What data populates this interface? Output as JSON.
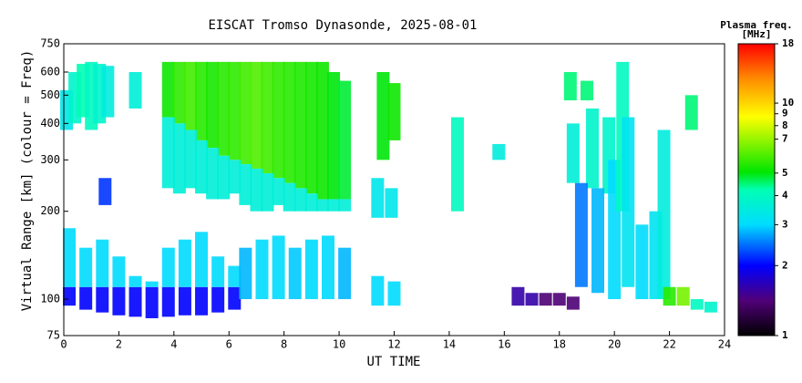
{
  "chart_data": {
    "type": "range-scatter",
    "title": "EISCAT Tromso Dynasonde, 2025-08-01",
    "xlabel": "UT TIME",
    "ylabel": "Virtual Range [km] (colour = Freq)",
    "colorbar_title": "Plasma freq.",
    "colorbar_unit": "[MHz]",
    "xlim": [
      0,
      24
    ],
    "xticks": [
      0,
      2,
      4,
      6,
      8,
      10,
      12,
      14,
      16,
      18,
      20,
      22,
      24
    ],
    "ylim": [
      75,
      750
    ],
    "yticks": [
      75,
      100,
      200,
      300,
      400,
      500,
      600,
      750
    ],
    "ylog": true,
    "clim": [
      1,
      18
    ],
    "cticks": [
      1,
      2,
      3,
      4,
      5,
      7,
      8,
      9,
      10,
      18
    ],
    "clog": true,
    "x": [
      0.1,
      0.4,
      0.7,
      1.0,
      1.3,
      1.6,
      1.5,
      2.6,
      3.8,
      4.2,
      4.6,
      5.0,
      5.4,
      5.8,
      6.2,
      6.6,
      7.0,
      7.4,
      7.8,
      8.2,
      8.6,
      9.0,
      9.4,
      9.8,
      10.2,
      3.8,
      4.2,
      4.6,
      5.0,
      5.4,
      5.8,
      6.2,
      6.6,
      7.0,
      7.4,
      7.8,
      8.2,
      8.6,
      9.0,
      9.4,
      9.8,
      10.2,
      0.2,
      0.8,
      1.4,
      2.0,
      2.6,
      3.2,
      3.8,
      4.4,
      5.0,
      5.6,
      6.2,
      0.2,
      0.8,
      1.4,
      2.0,
      2.6,
      3.2,
      3.8,
      4.4,
      5.0,
      5.6,
      6.2,
      6.6,
      7.2,
      7.8,
      8.4,
      9.0,
      9.6,
      10.2,
      11.6,
      12.0,
      11.4,
      11.9,
      11.4,
      12.0,
      14.3,
      15.8,
      16.5,
      17.0,
      17.5,
      18.0,
      18.5,
      18.4,
      19.0,
      18.5,
      19.2,
      19.8,
      18.8,
      19.4,
      20.0,
      20.3,
      20.5,
      21.0,
      21.5,
      21.8,
      22.0,
      22.5,
      23.0,
      23.5,
      22.8
    ],
    "ymin": [
      380,
      400,
      420,
      380,
      400,
      420,
      210,
      450,
      420,
      400,
      380,
      350,
      330,
      310,
      300,
      290,
      280,
      270,
      260,
      250,
      240,
      230,
      220,
      220,
      220,
      240,
      230,
      240,
      230,
      220,
      220,
      230,
      210,
      200,
      200,
      210,
      200,
      200,
      200,
      200,
      200,
      200,
      95,
      92,
      90,
      88,
      87,
      86,
      87,
      88,
      88,
      90,
      92,
      110,
      110,
      110,
      110,
      110,
      110,
      110,
      110,
      110,
      110,
      110,
      100,
      100,
      100,
      100,
      100,
      100,
      100,
      300,
      350,
      190,
      190,
      95,
      95,
      200,
      300,
      95,
      95,
      95,
      95,
      92,
      480,
      480,
      250,
      240,
      230,
      110,
      105,
      100,
      200,
      110,
      100,
      100,
      100,
      95,
      95,
      92,
      90,
      380
    ],
    "ymax": [
      520,
      600,
      640,
      650,
      640,
      630,
      260,
      600,
      650,
      650,
      650,
      650,
      650,
      650,
      650,
      650,
      650,
      650,
      650,
      650,
      650,
      650,
      650,
      600,
      560,
      420,
      400,
      380,
      350,
      330,
      310,
      300,
      290,
      280,
      270,
      260,
      250,
      240,
      230,
      220,
      220,
      220,
      110,
      110,
      110,
      110,
      110,
      110,
      110,
      110,
      110,
      110,
      110,
      175,
      150,
      160,
      140,
      120,
      115,
      150,
      160,
      170,
      140,
      130,
      150,
      160,
      165,
      150,
      160,
      165,
      150,
      600,
      550,
      260,
      240,
      120,
      115,
      420,
      340,
      110,
      105,
      105,
      105,
      102,
      600,
      560,
      400,
      450,
      420,
      250,
      240,
      300,
      650,
      420,
      180,
      200,
      380,
      110,
      110,
      100,
      98,
      500
    ],
    "freq": [
      3.3,
      3.8,
      4.2,
      4.0,
      3.8,
      3.5,
      2.2,
      3.6,
      5.2,
      5.6,
      5.8,
      5.5,
      5.3,
      5.5,
      5.6,
      5.8,
      6.0,
      5.8,
      5.6,
      5.5,
      5.4,
      5.3,
      5.2,
      5.0,
      4.8,
      3.6,
      3.6,
      3.6,
      3.6,
      3.6,
      3.6,
      3.6,
      3.6,
      3.6,
      3.6,
      3.6,
      3.6,
      3.6,
      3.6,
      3.6,
      3.6,
      3.6,
      2.0,
      2.0,
      2.0,
      2.0,
      2.0,
      2.0,
      2.0,
      2.0,
      2.0,
      2.0,
      2.0,
      3.0,
      3.0,
      3.0,
      3.0,
      3.0,
      3.0,
      3.0,
      3.0,
      3.0,
      3.0,
      3.0,
      2.8,
      3.0,
      3.0,
      2.9,
      3.0,
      3.0,
      2.8,
      5.0,
      5.2,
      3.3,
      3.3,
      3.0,
      3.0,
      4.0,
      3.5,
      1.6,
      1.6,
      1.4,
      1.4,
      1.4,
      4.5,
      4.5,
      3.6,
      3.8,
      3.8,
      2.5,
      2.8,
      3.0,
      4.0,
      3.2,
      3.0,
      3.2,
      3.5,
      5.5,
      6.5,
      4.0,
      3.8,
      4.5
    ]
  }
}
